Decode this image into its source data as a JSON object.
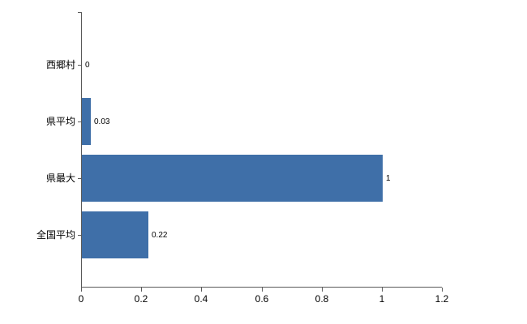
{
  "chart_data": {
    "type": "bar",
    "orientation": "horizontal",
    "title": "",
    "xlabel": "",
    "ylabel": "",
    "categories": [
      "西郷村",
      "県平均",
      "県最大",
      "全国平均"
    ],
    "values": [
      0,
      0.03,
      1,
      0.22
    ],
    "value_labels": [
      "0",
      "0.03",
      "1",
      "0.22"
    ],
    "xlim": [
      0,
      1.2
    ],
    "x_ticks": [
      0,
      0.2,
      0.4,
      0.6,
      0.8,
      1,
      1.2
    ],
    "x_tick_labels": [
      "0",
      "0.2",
      "0.4",
      "0.6",
      "0.8",
      "1",
      "1.2"
    ],
    "grid": false,
    "legend": false,
    "bar_color": "#3f6fa8",
    "axis_color": "#595959",
    "text_color": "#000000",
    "background_color": "#ffffff"
  }
}
